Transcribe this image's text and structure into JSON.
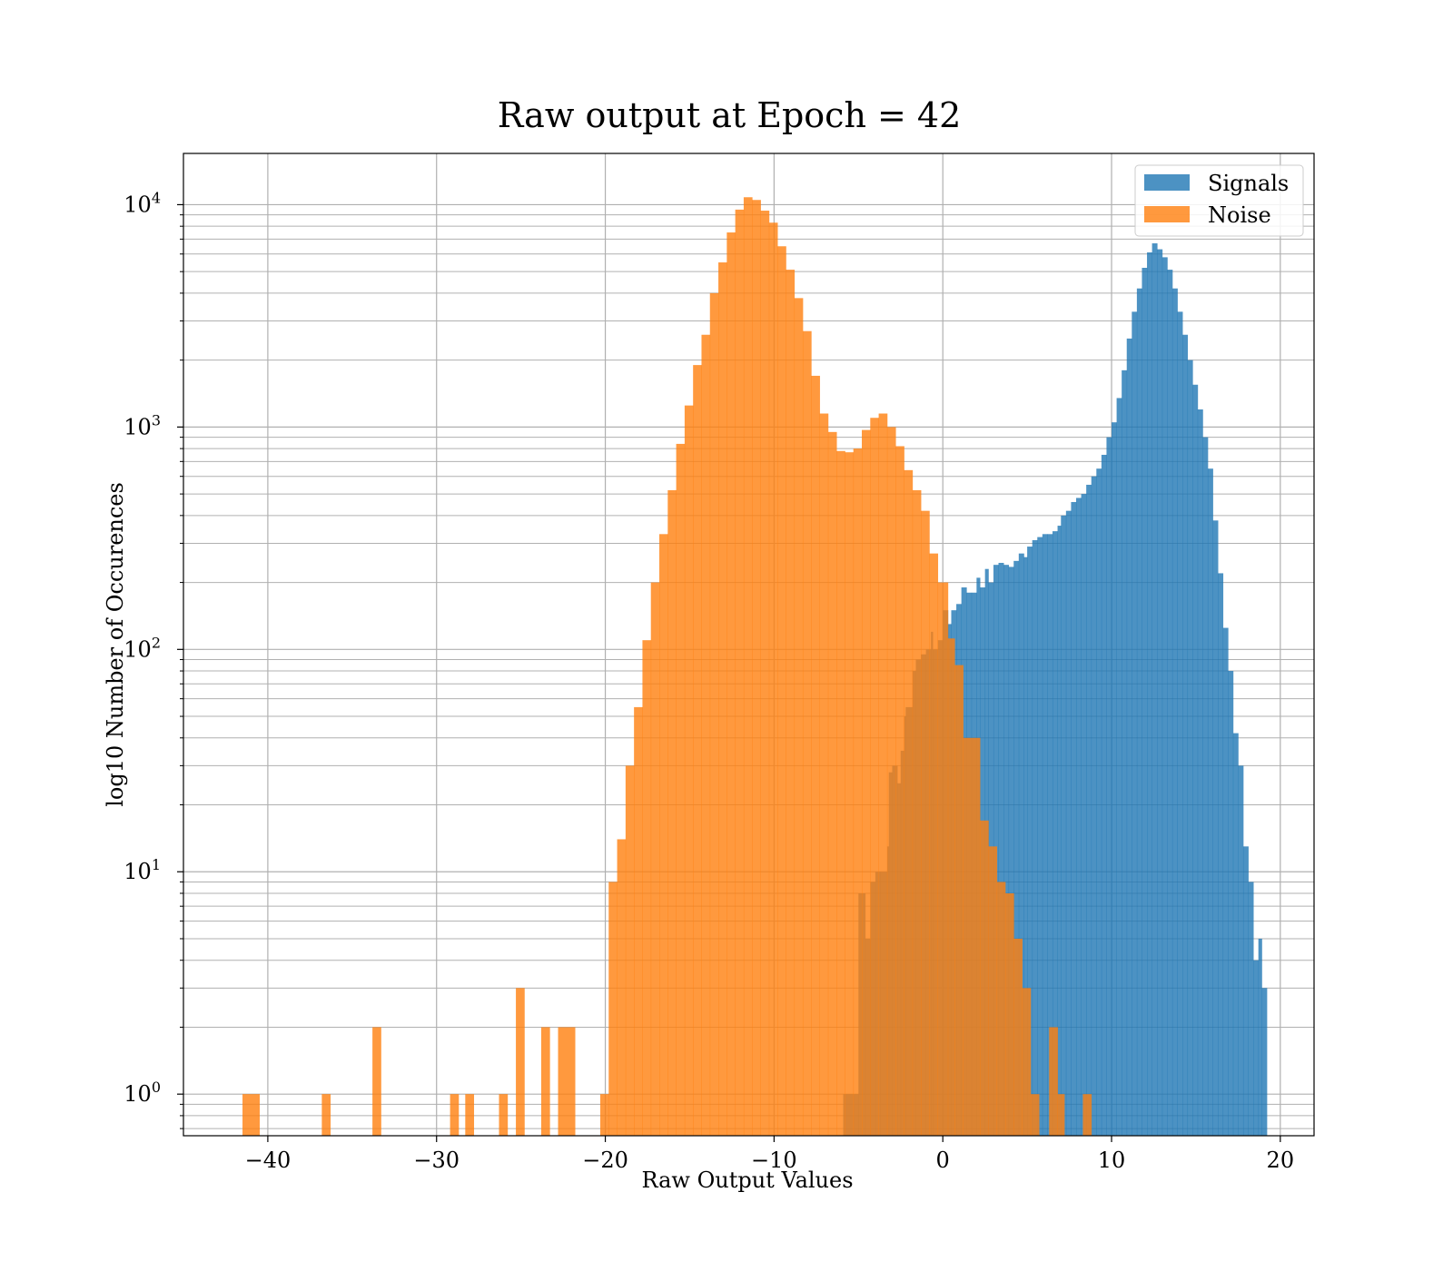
{
  "chart_data": {
    "type": "histogram",
    "title": "Raw output at Epoch = 42",
    "xlabel": "Raw Output Values",
    "ylabel": "log10 Number of Occurences",
    "xlim": [
      -45,
      22
    ],
    "ylim": [
      0.65,
      17000
    ],
    "yscale": "log",
    "grid": true,
    "grid_minor": true,
    "legend_position": "top-right",
    "xticks": [
      -40,
      -30,
      -20,
      -10,
      0,
      10,
      20
    ],
    "xtick_labels": [
      "−40",
      "−30",
      "−20",
      "−10",
      "0",
      "10",
      "20"
    ],
    "yticks": [
      {
        "value": 1,
        "base": "10",
        "exp": "0"
      },
      {
        "value": 10,
        "base": "10",
        "exp": "1"
      },
      {
        "value": 100,
        "base": "10",
        "exp": "2"
      },
      {
        "value": 1000,
        "base": "10",
        "exp": "3"
      },
      {
        "value": 10000,
        "base": "10",
        "exp": "4"
      }
    ],
    "series": [
      {
        "name": "Signals",
        "color": "#1f77b4",
        "opacity": 0.8,
        "bins": [
          [
            -5.9,
            -5.0,
            1
          ],
          [
            -5.0,
            -4.6,
            8
          ],
          [
            -4.6,
            -4.3,
            5
          ],
          [
            -4.3,
            -4.0,
            9
          ],
          [
            -4.0,
            -3.7,
            10
          ],
          [
            -3.7,
            -3.3,
            10
          ],
          [
            -3.3,
            -3.2,
            13
          ],
          [
            -3.2,
            -3.0,
            28
          ],
          [
            -3.0,
            -2.7,
            30
          ],
          [
            -2.7,
            -2.5,
            25
          ],
          [
            -2.5,
            -2.3,
            35
          ],
          [
            -2.3,
            -2.2,
            50
          ],
          [
            -2.2,
            -1.8,
            55
          ],
          [
            -1.8,
            -1.6,
            80
          ],
          [
            -1.6,
            -1.3,
            90
          ],
          [
            -1.3,
            -1.0,
            95
          ],
          [
            -1.0,
            -0.7,
            100
          ],
          [
            -0.7,
            -0.6,
            120
          ],
          [
            -0.6,
            -0.3,
            100
          ],
          [
            -0.3,
            0.0,
            110
          ],
          [
            0.0,
            0.3,
            150
          ],
          [
            0.3,
            0.5,
            130
          ],
          [
            0.5,
            0.8,
            150
          ],
          [
            0.8,
            1.1,
            160
          ],
          [
            1.1,
            1.4,
            190
          ],
          [
            1.4,
            1.7,
            180
          ],
          [
            1.7,
            2.0,
            180
          ],
          [
            2.0,
            2.2,
            210
          ],
          [
            2.2,
            2.5,
            190
          ],
          [
            2.5,
            2.7,
            230
          ],
          [
            2.7,
            3.0,
            200
          ],
          [
            3.0,
            3.3,
            240
          ],
          [
            3.3,
            3.6,
            245
          ],
          [
            3.6,
            3.9,
            240
          ],
          [
            3.9,
            4.2,
            235
          ],
          [
            4.2,
            4.5,
            250
          ],
          [
            4.5,
            4.8,
            270
          ],
          [
            4.8,
            5.0,
            260
          ],
          [
            5.0,
            5.3,
            290
          ],
          [
            5.3,
            5.6,
            310
          ],
          [
            5.6,
            5.9,
            320
          ],
          [
            5.9,
            6.2,
            330
          ],
          [
            6.2,
            6.5,
            330
          ],
          [
            6.5,
            6.8,
            340
          ],
          [
            6.8,
            7.0,
            360
          ],
          [
            7.0,
            7.3,
            400
          ],
          [
            7.3,
            7.6,
            420
          ],
          [
            7.6,
            7.9,
            460
          ],
          [
            7.9,
            8.2,
            480
          ],
          [
            8.2,
            8.5,
            500
          ],
          [
            8.5,
            8.8,
            550
          ],
          [
            8.8,
            9.1,
            600
          ],
          [
            9.1,
            9.4,
            650
          ],
          [
            9.4,
            9.7,
            750
          ],
          [
            9.7,
            10.0,
            900
          ],
          [
            10.0,
            10.3,
            1050
          ],
          [
            10.3,
            10.6,
            1350
          ],
          [
            10.6,
            10.9,
            1800
          ],
          [
            10.9,
            11.2,
            2500
          ],
          [
            11.2,
            11.5,
            3300
          ],
          [
            11.5,
            11.8,
            4200
          ],
          [
            11.8,
            12.1,
            5200
          ],
          [
            12.1,
            12.4,
            6100
          ],
          [
            12.4,
            12.7,
            6700
          ],
          [
            12.7,
            13.0,
            6300
          ],
          [
            13.0,
            13.3,
            5800
          ],
          [
            13.3,
            13.6,
            5100
          ],
          [
            13.6,
            13.9,
            4200
          ],
          [
            13.9,
            14.2,
            3300
          ],
          [
            14.2,
            14.5,
            2600
          ],
          [
            14.5,
            14.8,
            2000
          ],
          [
            14.8,
            15.1,
            1550
          ],
          [
            15.1,
            15.4,
            1200
          ],
          [
            15.4,
            15.7,
            900
          ],
          [
            15.7,
            16.0,
            650
          ],
          [
            16.0,
            16.3,
            380
          ],
          [
            16.3,
            16.6,
            220
          ],
          [
            16.6,
            16.9,
            125
          ],
          [
            16.9,
            17.2,
            80
          ],
          [
            17.2,
            17.5,
            42
          ],
          [
            17.5,
            17.8,
            30
          ],
          [
            17.8,
            18.1,
            13
          ],
          [
            18.1,
            18.4,
            9
          ],
          [
            18.4,
            18.7,
            4
          ],
          [
            18.7,
            18.9,
            5
          ],
          [
            18.9,
            19.2,
            3
          ]
        ]
      },
      {
        "name": "Noise",
        "color": "#ff7f0e",
        "opacity": 0.8,
        "bins": [
          [
            -41.5,
            -40.5,
            1
          ],
          [
            -36.8,
            -36.3,
            1
          ],
          [
            -33.8,
            -33.3,
            2
          ],
          [
            -29.2,
            -28.7,
            1
          ],
          [
            -28.3,
            -27.8,
            1
          ],
          [
            -26.3,
            -25.8,
            1
          ],
          [
            -25.3,
            -24.8,
            3
          ],
          [
            -23.8,
            -23.3,
            2
          ],
          [
            -22.8,
            -21.8,
            2
          ],
          [
            -20.3,
            -19.8,
            1
          ],
          [
            -19.8,
            -19.3,
            9
          ],
          [
            -19.3,
            -18.8,
            14
          ],
          [
            -18.8,
            -18.3,
            30
          ],
          [
            -18.3,
            -17.8,
            55
          ],
          [
            -17.8,
            -17.3,
            110
          ],
          [
            -17.3,
            -16.8,
            200
          ],
          [
            -16.8,
            -16.3,
            330
          ],
          [
            -16.3,
            -15.8,
            520
          ],
          [
            -15.8,
            -15.3,
            840
          ],
          [
            -15.3,
            -14.8,
            1250
          ],
          [
            -14.8,
            -14.3,
            1900
          ],
          [
            -14.3,
            -13.8,
            2600
          ],
          [
            -13.8,
            -13.3,
            4000
          ],
          [
            -13.3,
            -12.8,
            5500
          ],
          [
            -12.8,
            -12.3,
            7500
          ],
          [
            -12.3,
            -11.8,
            9500
          ],
          [
            -11.8,
            -11.3,
            10800
          ],
          [
            -11.3,
            -10.8,
            10500
          ],
          [
            -10.8,
            -10.3,
            9400
          ],
          [
            -10.3,
            -9.8,
            8300
          ],
          [
            -9.8,
            -9.3,
            6500
          ],
          [
            -9.3,
            -8.8,
            5100
          ],
          [
            -8.8,
            -8.3,
            3800
          ],
          [
            -8.3,
            -7.8,
            2700
          ],
          [
            -7.8,
            -7.3,
            1700
          ],
          [
            -7.3,
            -6.8,
            1150
          ],
          [
            -6.8,
            -6.3,
            950
          ],
          [
            -6.3,
            -5.8,
            780
          ],
          [
            -5.8,
            -5.3,
            770
          ],
          [
            -5.3,
            -4.8,
            800
          ],
          [
            -4.8,
            -4.3,
            970
          ],
          [
            -4.3,
            -3.8,
            1100
          ],
          [
            -3.8,
            -3.3,
            1150
          ],
          [
            -3.3,
            -2.8,
            1000
          ],
          [
            -2.8,
            -2.3,
            820
          ],
          [
            -2.3,
            -1.8,
            640
          ],
          [
            -1.8,
            -1.3,
            520
          ],
          [
            -1.3,
            -0.8,
            420
          ],
          [
            -0.8,
            -0.3,
            270
          ],
          [
            -0.3,
            0.3,
            200
          ],
          [
            0.3,
            0.7,
            112
          ],
          [
            0.7,
            1.2,
            85
          ],
          [
            1.2,
            2.2,
            40
          ],
          [
            2.2,
            2.7,
            17
          ],
          [
            2.7,
            3.2,
            13
          ],
          [
            3.2,
            3.7,
            9
          ],
          [
            3.7,
            4.2,
            8
          ],
          [
            4.2,
            4.7,
            5
          ],
          [
            4.7,
            5.2,
            3
          ],
          [
            5.2,
            5.7,
            1
          ],
          [
            6.3,
            6.8,
            2
          ],
          [
            6.8,
            7.2,
            1
          ],
          [
            8.3,
            8.8,
            1
          ]
        ]
      }
    ]
  }
}
